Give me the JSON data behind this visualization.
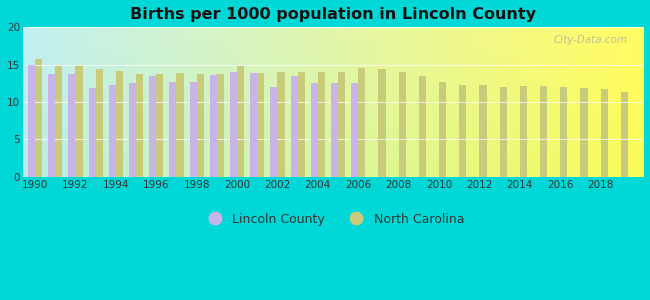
{
  "title": "Births per 1000 population in Lincoln County",
  "background_color": "#00d8d8",
  "lincoln_county": {
    "years": [
      1990,
      1991,
      1992,
      1993,
      1994,
      1995,
      1996,
      1997,
      1998,
      1999,
      2000,
      2001,
      2002,
      2003,
      2004,
      2005,
      2006
    ],
    "values": [
      15.0,
      13.8,
      13.7,
      11.9,
      12.3,
      12.5,
      13.5,
      12.7,
      12.7,
      13.6,
      14.0,
      13.9,
      12.0,
      13.5,
      12.5,
      12.5,
      12.5
    ]
  },
  "north_carolina": {
    "years": [
      1990,
      1991,
      1992,
      1993,
      1994,
      1995,
      1996,
      1997,
      1998,
      1999,
      2000,
      2001,
      2002,
      2003,
      2004,
      2005,
      2006,
      2007,
      2008,
      2009,
      2010,
      2011,
      2012,
      2013,
      2014,
      2015,
      2016,
      2017,
      2018,
      2019
    ],
    "values": [
      15.8,
      15.0,
      15.0,
      14.4,
      14.2,
      13.8,
      13.8,
      13.9,
      13.7,
      13.8,
      14.8,
      13.9,
      14.0,
      14.0,
      14.0,
      14.0,
      14.5,
      14.4,
      14.0,
      13.5,
      12.7,
      12.3,
      12.3,
      12.0,
      12.1,
      12.1,
      12.0,
      11.9,
      11.7,
      11.4
    ]
  },
  "lincoln_color": "#c8b4e8",
  "nc_color": "#c8cc7a",
  "ylim": [
    0,
    20
  ],
  "yticks": [
    0,
    5,
    10,
    15,
    20
  ],
  "xticks": [
    1990,
    1992,
    1994,
    1996,
    1998,
    2000,
    2002,
    2004,
    2006,
    2008,
    2010,
    2012,
    2014,
    2016,
    2018
  ],
  "bar_width": 0.35,
  "legend_lincoln": "Lincoln County",
  "legend_nc": "North Carolina",
  "watermark": "City-Data.com",
  "xlim_left": 1989.4,
  "xlim_right": 2020.1
}
